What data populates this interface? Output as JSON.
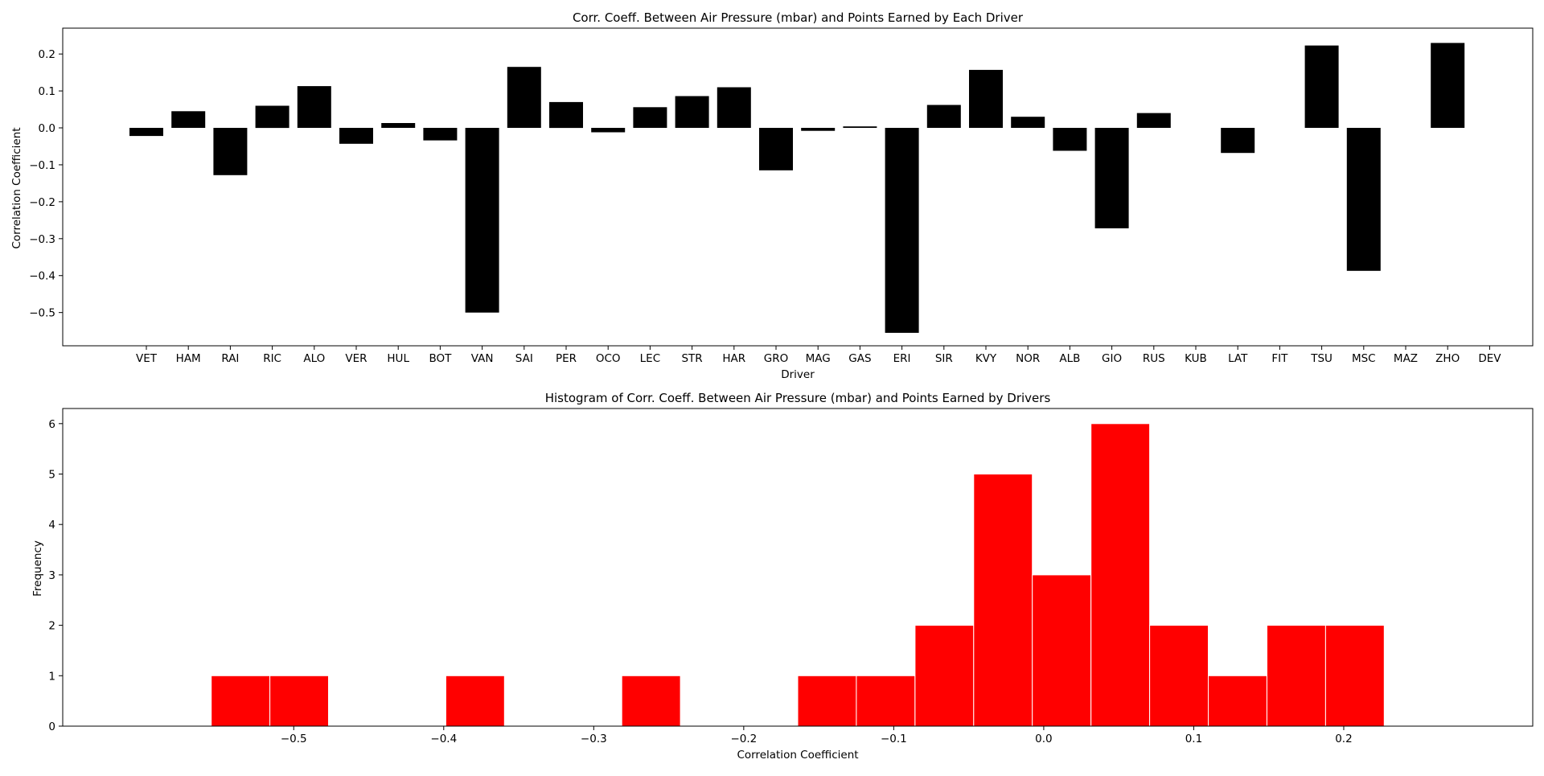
{
  "colors": {
    "bar": "#000000",
    "hist": "#ff0000",
    "hist_edge": "#ffffff",
    "axis": "#000000",
    "background": "#ffffff"
  },
  "chart_data": [
    {
      "type": "bar",
      "title": "Corr. Coeff. Between Air Pressure (mbar) and Points Earned by Each Driver",
      "xlabel": "Driver",
      "ylabel": "Correlation Coefficient",
      "categories": [
        "VET",
        "HAM",
        "RAI",
        "RIC",
        "ALO",
        "VER",
        "HUL",
        "BOT",
        "VAN",
        "SAI",
        "PER",
        "OCO",
        "LEC",
        "STR",
        "HAR",
        "GRO",
        "MAG",
        "GAS",
        "ERI",
        "SIR",
        "KVY",
        "NOR",
        "ALB",
        "GIO",
        "RUS",
        "KUB",
        "LAT",
        "FIT",
        "TSU",
        "MSC",
        "MAZ",
        "ZHO",
        "DEV"
      ],
      "values": [
        -0.022,
        0.045,
        -0.128,
        0.06,
        0.113,
        -0.043,
        0.013,
        -0.034,
        -0.5,
        0.165,
        0.07,
        -0.012,
        0.056,
        0.086,
        0.11,
        -0.115,
        -0.008,
        0.004,
        -0.555,
        0.062,
        0.157,
        0.03,
        -0.062,
        -0.272,
        0.04,
        null,
        -0.068,
        null,
        0.223,
        -0.387,
        null,
        0.23,
        null
      ],
      "ylim": [
        -0.59,
        0.27
      ],
      "yticks": [
        -0.5,
        -0.4,
        -0.3,
        -0.2,
        -0.1,
        0.0,
        0.1,
        0.2
      ],
      "ytick_labels": [
        "−0.5",
        "−0.4",
        "−0.3",
        "−0.2",
        "−0.1",
        "0.0",
        "0.1",
        "0.2"
      ],
      "grid": false
    },
    {
      "type": "bar",
      "title": "Histogram of Corr. Coeff. Between Air Pressure (mbar) and Points Earned by Drivers",
      "xlabel": "Correlation Coefficient",
      "ylabel": "Frequency",
      "bin_edges": [
        -0.555,
        -0.5159,
        -0.4768,
        -0.4377,
        -0.3986,
        -0.3595,
        -0.3204,
        -0.2813,
        -0.2422,
        -0.2031,
        -0.164,
        -0.1249,
        -0.0858,
        -0.0467,
        -0.0076,
        0.0315,
        0.0706,
        0.1097,
        0.1488,
        0.1879,
        0.227
      ],
      "counts": [
        1,
        1,
        0,
        0,
        1,
        0,
        0,
        1,
        0,
        0,
        1,
        1,
        2,
        5,
        3,
        6,
        2,
        1,
        2,
        2
      ],
      "xlim": [
        -0.654,
        0.326
      ],
      "ylim": [
        0,
        6.3
      ],
      "xticks": [
        -0.5,
        -0.4,
        -0.3,
        -0.2,
        -0.1,
        0.0,
        0.1,
        0.2
      ],
      "xtick_labels": [
        "−0.5",
        "−0.4",
        "−0.3",
        "−0.2",
        "−0.1",
        "0.0",
        "0.1",
        "0.2"
      ],
      "yticks": [
        0,
        1,
        2,
        3,
        4,
        5,
        6
      ],
      "ytick_labels": [
        "0",
        "1",
        "2",
        "3",
        "4",
        "5",
        "6"
      ],
      "grid": false
    }
  ]
}
